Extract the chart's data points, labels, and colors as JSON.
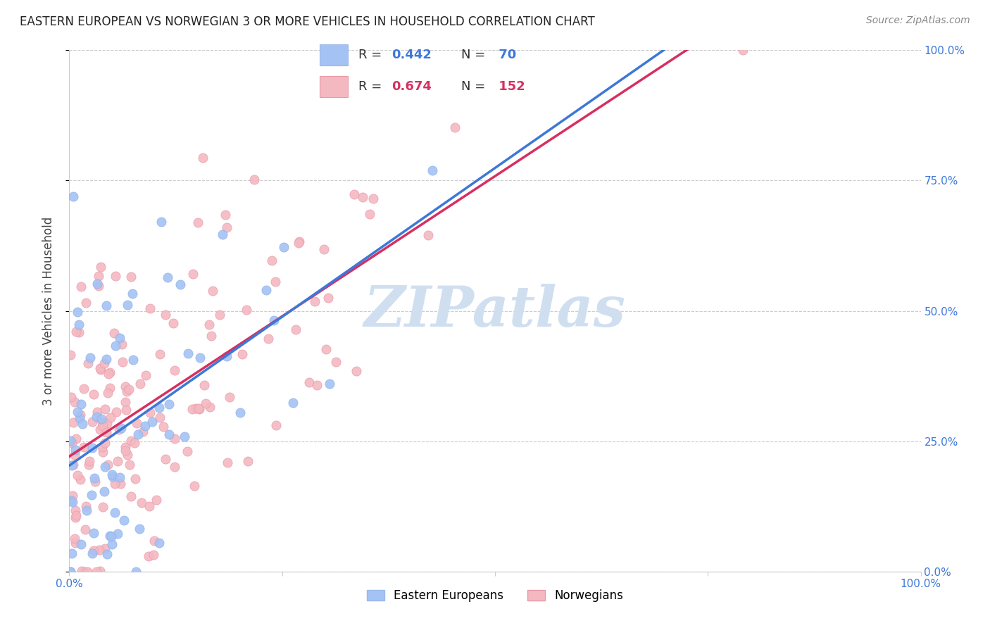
{
  "title": "EASTERN EUROPEAN VS NORWEGIAN 3 OR MORE VEHICLES IN HOUSEHOLD CORRELATION CHART",
  "source": "Source: ZipAtlas.com",
  "ylabel_label": "3 or more Vehicles in Household",
  "legend_labels": [
    "Eastern Europeans",
    "Norwegians"
  ],
  "blue_color": "#a4c2f4",
  "pink_color": "#f4b8c1",
  "blue_line_color": "#3d78d8",
  "pink_line_color": "#d63060",
  "watermark_color": "#d0dff0",
  "R_blue": 0.442,
  "N_blue": 70,
  "R_pink": 0.674,
  "N_pink": 152,
  "seed_blue": 12,
  "seed_pink": 77,
  "xlim": [
    0.0,
    1.0
  ],
  "ylim": [
    0.0,
    1.0
  ],
  "ytick_vals": [
    0.0,
    0.25,
    0.5,
    0.75,
    1.0
  ],
  "ytick_labels": [
    "0.0%",
    "25.0%",
    "50.0%",
    "75.0%",
    "100.0%"
  ],
  "xtick_labels_ends": [
    "0.0%",
    "100.0%"
  ],
  "title_fontsize": 12,
  "source_fontsize": 10,
  "tick_fontsize": 11,
  "legend_fontsize": 13,
  "ylabel_fontsize": 12
}
